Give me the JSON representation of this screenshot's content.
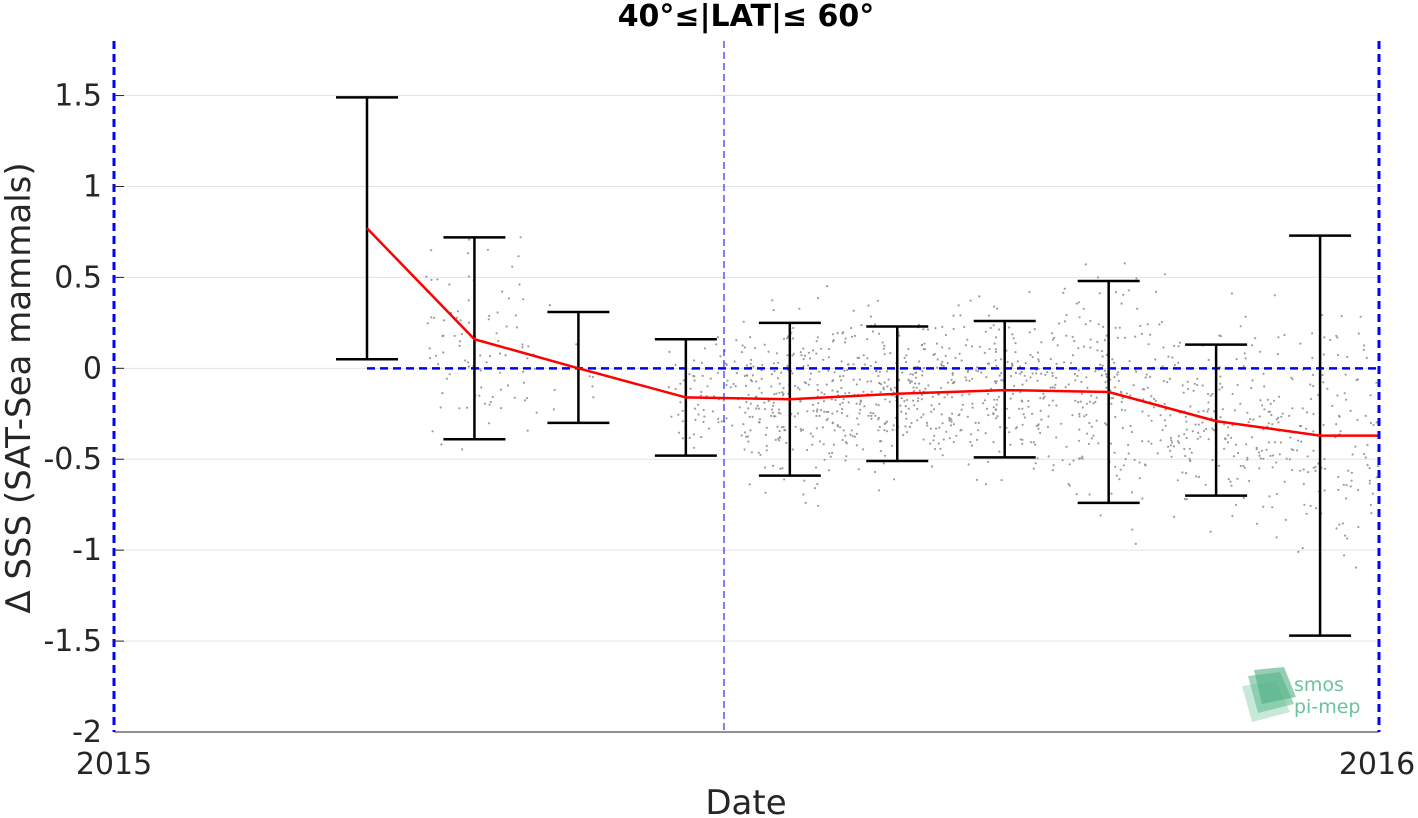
{
  "chart_data": {
    "type": "scatter",
    "title": "40°≤|LAT|≤ 60°",
    "xlabel": "Date",
    "ylabel": "Δ SSS (SAT-Sea mammals)",
    "x_tick_labels": [
      "2015",
      "2016"
    ],
    "xlim": [
      "2015-01-01",
      "2016-01-01"
    ],
    "ylim": [
      -2,
      1.8
    ],
    "y_ticks": [
      -2,
      -1.5,
      -1,
      -0.5,
      0,
      0.5,
      1,
      1.5
    ],
    "y_tick_labels": [
      "-2",
      "-1.5",
      "-1",
      "-0.5",
      "0",
      "0.5",
      "1",
      "1.5"
    ],
    "grid": true,
    "series": [
      {
        "kind": "mean_line_with_errorbars",
        "color": "#ff0000",
        "points": [
          {
            "date": "2015-03-15",
            "mean": 0.77,
            "low": 0.05,
            "high": 1.49
          },
          {
            "date": "2015-04-15",
            "mean": 0.16,
            "low": -0.39,
            "high": 0.72
          },
          {
            "date": "2015-05-15",
            "mean": 0.0,
            "low": -0.3,
            "high": 0.31
          },
          {
            "date": "2015-06-15",
            "mean": -0.16,
            "low": -0.48,
            "high": 0.16
          },
          {
            "date": "2015-07-15",
            "mean": -0.17,
            "low": -0.59,
            "high": 0.25
          },
          {
            "date": "2015-08-15",
            "mean": -0.14,
            "low": -0.51,
            "high": 0.23
          },
          {
            "date": "2015-09-15",
            "mean": -0.12,
            "low": -0.49,
            "high": 0.26
          },
          {
            "date": "2015-10-15",
            "mean": -0.13,
            "low": -0.74,
            "high": 0.48
          },
          {
            "date": "2015-11-15",
            "mean": -0.29,
            "low": -0.7,
            "high": 0.13
          },
          {
            "date": "2015-12-15",
            "mean": -0.37,
            "low": -1.47,
            "high": 0.73
          },
          {
            "date": "2016-01-01",
            "mean": -0.37,
            "low": null,
            "high": null
          }
        ]
      },
      {
        "kind": "scatter_cloud",
        "color": "#8c8c8c",
        "note_points": "approximate density by month",
        "clusters": [
          {
            "from": "2015-04-01",
            "to": "2015-05-01",
            "mean": 0.15,
            "spread": 0.5,
            "count": 90
          },
          {
            "from": "2015-05-01",
            "to": "2015-05-20",
            "mean": 0.0,
            "spread": 0.3,
            "count": 12
          },
          {
            "from": "2015-06-10",
            "to": "2015-07-01",
            "mean": -0.15,
            "spread": 0.3,
            "count": 70
          },
          {
            "from": "2015-07-01",
            "to": "2015-08-01",
            "mean": -0.17,
            "spread": 0.4,
            "count": 260
          },
          {
            "from": "2015-08-01",
            "to": "2015-09-01",
            "mean": -0.14,
            "spread": 0.37,
            "count": 250
          },
          {
            "from": "2015-09-01",
            "to": "2015-10-01",
            "mean": -0.12,
            "spread": 0.37,
            "count": 200
          },
          {
            "from": "2015-10-01",
            "to": "2015-11-01",
            "mean": -0.13,
            "spread": 0.5,
            "count": 200
          },
          {
            "from": "2015-11-01",
            "to": "2015-12-01",
            "mean": -0.29,
            "spread": 0.42,
            "count": 170
          },
          {
            "from": "2015-12-01",
            "to": "2016-01-01",
            "mean": -0.37,
            "spread": 0.6,
            "count": 150
          }
        ]
      },
      {
        "kind": "reference_line",
        "value": 0,
        "from": "2015-03-15",
        "to": "2016-01-01",
        "color": "#0000ff",
        "style": "dashed"
      }
    ],
    "vertical_marker": {
      "date": "2015-06-26",
      "color": "#0000ff",
      "style": "dashed"
    },
    "logo": {
      "line1": "smos",
      "line2": "pi-mep",
      "color": "#6cc29a"
    }
  }
}
